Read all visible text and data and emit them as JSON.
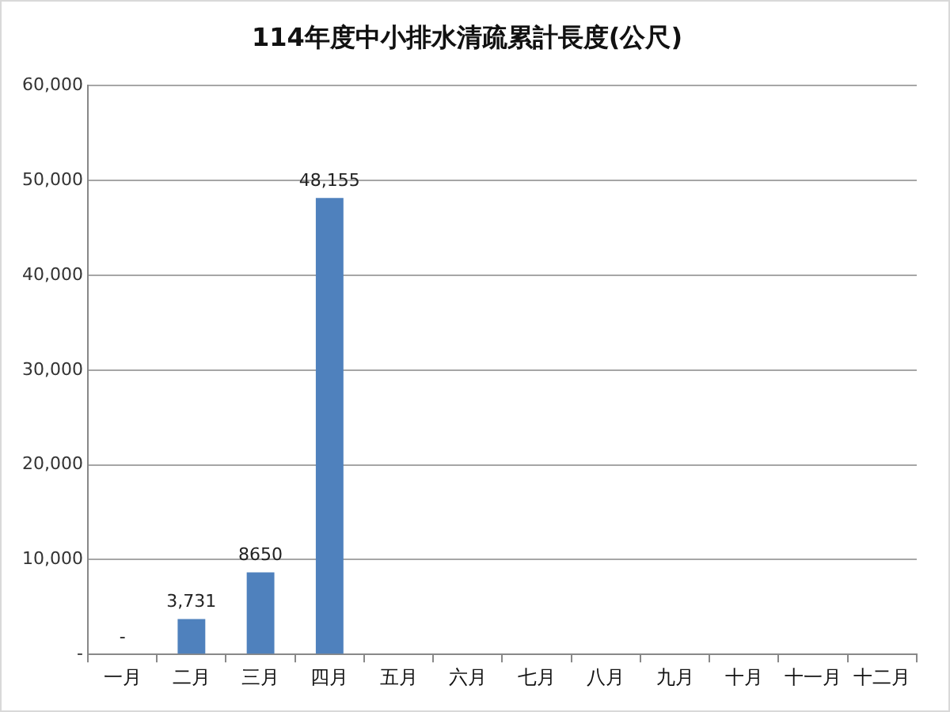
{
  "chart_data": {
    "type": "bar",
    "title": "114年度中小排水清疏累計長度(公尺)",
    "categories": [
      "一月",
      "二月",
      "三月",
      "四月",
      "五月",
      "六月",
      "七月",
      "八月",
      "九月",
      "十月",
      "十一月",
      "十二月"
    ],
    "values": [
      0,
      3731,
      8650,
      48155,
      null,
      null,
      null,
      null,
      null,
      null,
      null,
      null
    ],
    "value_labels": [
      "-",
      "3,731",
      "8650",
      "48,155",
      null,
      null,
      null,
      null,
      null,
      null,
      null,
      null
    ],
    "color": "#4f81bd",
    "ylim": [
      0,
      60000
    ],
    "yticks": [
      {
        "value": 0,
        "label": "-"
      },
      {
        "value": 10000,
        "label": "10,000"
      },
      {
        "value": 20000,
        "label": "20,000"
      },
      {
        "value": 30000,
        "label": "30,000"
      },
      {
        "value": 40000,
        "label": "40,000"
      },
      {
        "value": 50000,
        "label": "50,000"
      },
      {
        "value": 60000,
        "label": "60,000"
      }
    ],
    "grid": "y"
  }
}
